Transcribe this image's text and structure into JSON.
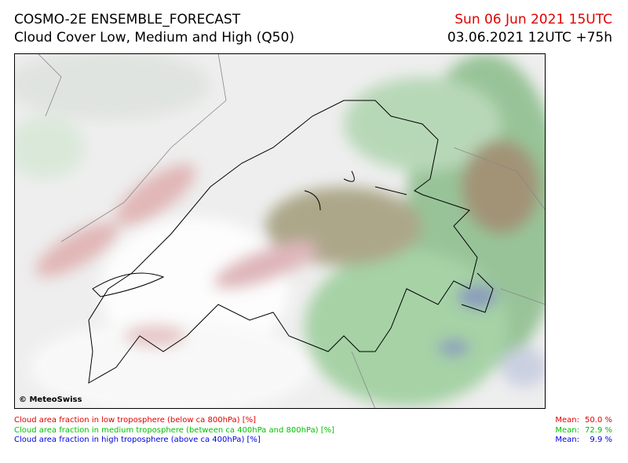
{
  "header": {
    "title": "COSMO-2E ENSEMBLE_FORECAST",
    "subtitle": "Cloud Cover Low, Medium and High (Q50)",
    "valid_time": "Sun 06 Jun 2021 15UTC",
    "run_time": "03.06.2021 12UTC +75h"
  },
  "map": {
    "copyright": "© MeteoSwiss"
  },
  "legend": [
    {
      "text": "Cloud area fraction in low troposphere (below ca 800hPa) [%]",
      "mean_label": "Mean:",
      "mean_value": "50.0 %",
      "color": "#e00000"
    },
    {
      "text": "Cloud area fraction in medium troposphere (between ca 400hPa and 800hPa) [%]",
      "mean_label": "Mean:",
      "mean_value": "72.9 %",
      "color": "#00c000"
    },
    {
      "text": "Cloud area fraction in high troposphere (above ca 400hPa) [%]",
      "mean_label": "Mean:",
      "mean_value": "9.9 %",
      "color": "#0000e0"
    }
  ]
}
